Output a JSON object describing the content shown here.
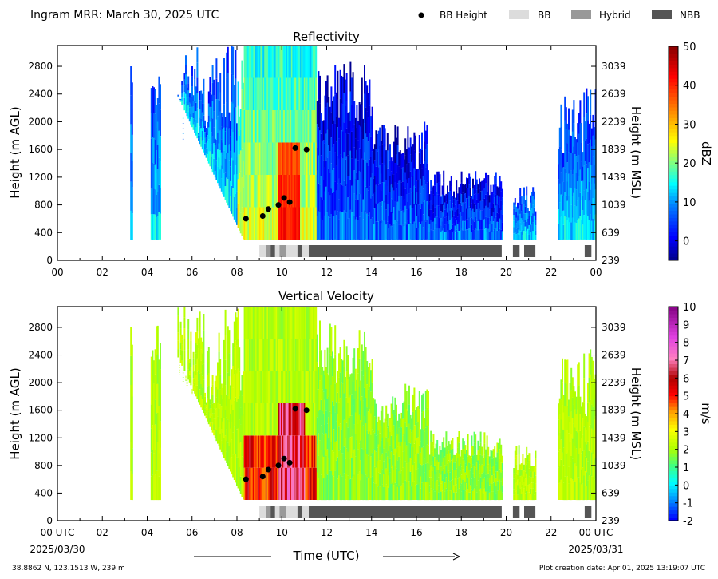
{
  "header": {
    "title": "Ingram MRR:  March 30, 2025 UTC",
    "legend": [
      {
        "label": "BB Height",
        "kind": "dot",
        "color": "#000000"
      },
      {
        "label": "BB",
        "kind": "patch",
        "color": "#dcdcdc"
      },
      {
        "label": "Hybrid",
        "kind": "patch",
        "color": "#999999"
      },
      {
        "label": "NBB",
        "kind": "patch",
        "color": "#555555"
      }
    ]
  },
  "footer": {
    "location": "38.8862 N, 123.1513 W, 239 m",
    "created": "Plot creation date: Apr 01, 2025 13:19:07 UTC",
    "xlabel": "Time (UTC)",
    "start_date": "2025/03/30",
    "end_date": "2025/03/31"
  },
  "chart_data": [
    {
      "type": "heatmap",
      "title": "Reflectivity",
      "xlabel": "",
      "ylabel": "Height (m AGL)",
      "y2label": "Height (m MSL)",
      "xlim": [
        0,
        24
      ],
      "ylim": [
        0,
        3100
      ],
      "x_ticks": [
        "00",
        "02",
        "04",
        "06",
        "08",
        "10",
        "12",
        "14",
        "16",
        "18",
        "20",
        "22",
        "00"
      ],
      "y_ticks": [
        0,
        400,
        800,
        1200,
        1600,
        2000,
        2400,
        2800
      ],
      "y2_ticks": [
        239,
        639,
        1039,
        1439,
        1839,
        2239,
        2639,
        3039
      ],
      "colorbar": {
        "label": "dBZ",
        "min": -5,
        "max": 50,
        "ticks": [
          0,
          10,
          20,
          30,
          40,
          50
        ]
      },
      "bright_band_heights": [
        {
          "time": 8.4,
          "height": 600
        },
        {
          "time": 9.15,
          "height": 640
        },
        {
          "time": 9.4,
          "height": 740
        },
        {
          "time": 9.85,
          "height": 800
        },
        {
          "time": 10.1,
          "height": 900
        },
        {
          "time": 10.35,
          "height": 840
        },
        {
          "time": 10.6,
          "height": 1620
        },
        {
          "time": 11.1,
          "height": 1600
        }
      ],
      "band_class": [
        {
          "start": 9.0,
          "end": 9.3,
          "type": "BB"
        },
        {
          "start": 9.3,
          "end": 9.5,
          "type": "Hybrid"
        },
        {
          "start": 9.5,
          "end": 9.7,
          "type": "NBB"
        },
        {
          "start": 9.7,
          "end": 9.9,
          "type": "BB"
        },
        {
          "start": 9.9,
          "end": 10.2,
          "type": "Hybrid"
        },
        {
          "start": 10.2,
          "end": 10.7,
          "type": "BB"
        },
        {
          "start": 10.7,
          "end": 10.9,
          "type": "NBB"
        },
        {
          "start": 10.9,
          "end": 11.2,
          "type": "BB"
        },
        {
          "start": 11.2,
          "end": 19.8,
          "type": "NBB"
        },
        {
          "start": 20.3,
          "end": 20.6,
          "type": "NBB"
        },
        {
          "start": 20.8,
          "end": 21.3,
          "type": "NBB"
        },
        {
          "start": 23.5,
          "end": 23.8,
          "type": "NBB"
        }
      ]
    },
    {
      "type": "heatmap",
      "title": "Vertical Velocity",
      "xlabel": "Time (UTC)",
      "ylabel": "Height (m AGL)",
      "y2label": "Height (m MSL)",
      "xlim": [
        0,
        24
      ],
      "ylim": [
        0,
        3100
      ],
      "x_ticks": [
        "00 UTC",
        "02",
        "04",
        "06",
        "08",
        "10",
        "12",
        "14",
        "16",
        "18",
        "20",
        "22",
        "00 UTC"
      ],
      "y_ticks": [
        0,
        400,
        800,
        1200,
        1600,
        2000,
        2400,
        2800
      ],
      "y2_ticks": [
        239,
        639,
        1039,
        1439,
        1839,
        2239,
        2639,
        3039
      ],
      "colorbar": {
        "label": "m/s",
        "min": -2,
        "max": 10,
        "ticks": [
          -2,
          -1,
          0,
          1,
          2,
          3,
          4,
          5,
          6,
          7,
          8,
          9,
          10
        ]
      },
      "bright_band_heights": [
        {
          "time": 8.4,
          "height": 600
        },
        {
          "time": 9.15,
          "height": 640
        },
        {
          "time": 9.4,
          "height": 740
        },
        {
          "time": 9.85,
          "height": 800
        },
        {
          "time": 10.1,
          "height": 900
        },
        {
          "time": 10.35,
          "height": 840
        },
        {
          "time": 10.6,
          "height": 1620
        },
        {
          "time": 11.1,
          "height": 1600
        }
      ],
      "band_class": [
        {
          "start": 9.0,
          "end": 9.3,
          "type": "BB"
        },
        {
          "start": 9.3,
          "end": 9.5,
          "type": "Hybrid"
        },
        {
          "start": 9.5,
          "end": 9.7,
          "type": "NBB"
        },
        {
          "start": 9.7,
          "end": 9.9,
          "type": "BB"
        },
        {
          "start": 9.9,
          "end": 10.2,
          "type": "Hybrid"
        },
        {
          "start": 10.2,
          "end": 10.7,
          "type": "BB"
        },
        {
          "start": 10.7,
          "end": 10.9,
          "type": "NBB"
        },
        {
          "start": 10.9,
          "end": 11.2,
          "type": "BB"
        },
        {
          "start": 11.2,
          "end": 19.8,
          "type": "NBB"
        },
        {
          "start": 20.3,
          "end": 20.6,
          "type": "NBB"
        },
        {
          "start": 20.8,
          "end": 21.3,
          "type": "NBB"
        },
        {
          "start": 23.5,
          "end": 23.8,
          "type": "NBB"
        }
      ]
    }
  ]
}
